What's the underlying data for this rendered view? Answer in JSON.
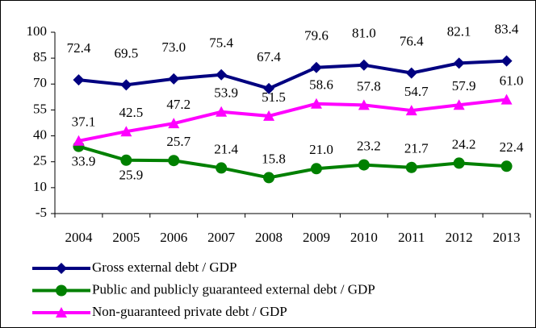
{
  "chart_data": {
    "type": "line",
    "categories": [
      "2004",
      "2005",
      "2006",
      "2007",
      "2008",
      "2009",
      "2010",
      "2011",
      "2012",
      "2013"
    ],
    "ylim": [
      -5,
      100
    ],
    "yticks": [
      -5,
      10,
      25,
      40,
      55,
      70,
      85,
      100
    ],
    "legend": "bottom-left",
    "series": [
      {
        "name": "Gross external debt / GDP",
        "color": "#000080",
        "marker": "diamond",
        "values": [
          72.4,
          69.5,
          73.0,
          75.4,
          67.4,
          79.6,
          81.0,
          76.4,
          82.1,
          83.4
        ],
        "value_labels": [
          "72.4",
          "69.5",
          "73.0",
          "75.4",
          "67.4",
          "79.6",
          "81.0",
          "76.4",
          "82.1",
          "83.4"
        ]
      },
      {
        "name": "Public and publicly guaranteed external debt / GDP",
        "color": "#008000",
        "marker": "circle",
        "values": [
          33.9,
          25.9,
          25.7,
          21.4,
          15.8,
          21.0,
          23.2,
          21.7,
          24.2,
          22.4
        ],
        "value_labels": [
          "33.9",
          "25.9",
          "25.7",
          "21.4",
          "15.8",
          "21.0",
          "23.2",
          "21.7",
          "24.2",
          "22.4"
        ]
      },
      {
        "name": "Non-guaranteed private debt / GDP",
        "color": "#ff00ff",
        "marker": "triangle",
        "values": [
          37.1,
          42.5,
          47.2,
          53.9,
          51.5,
          58.6,
          57.8,
          54.7,
          57.9,
          61.0
        ],
        "value_labels": [
          "37.1",
          "42.5",
          "47.2",
          "53.9",
          "51.5",
          "58.6",
          "57.8",
          "54.7",
          "57.9",
          "61.0"
        ]
      }
    ]
  }
}
